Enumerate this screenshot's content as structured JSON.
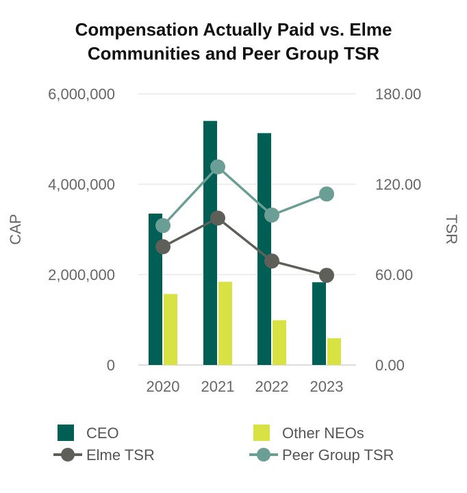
{
  "chart_data": {
    "type": "bar",
    "title_lines": [
      "Compensation Actually Paid vs. Elme",
      "Communities and Peer Group TSR"
    ],
    "categories": [
      "2020",
      "2021",
      "2022",
      "2023"
    ],
    "ylabel_left": "CAP",
    "ylabel_right": "TSR",
    "ylim_left": [
      0,
      6000000
    ],
    "ylim_right": [
      0,
      180
    ],
    "yticks_left": [
      {
        "value": 0,
        "label": "0"
      },
      {
        "value": 2000000,
        "label": "2,000,000"
      },
      {
        "value": 4000000,
        "label": "4,000,000"
      },
      {
        "value": 6000000,
        "label": "6,000,000"
      }
    ],
    "yticks_right": [
      {
        "value": 0,
        "label": "0.00"
      },
      {
        "value": 60,
        "label": "60.00"
      },
      {
        "value": 120,
        "label": "120.00"
      },
      {
        "value": 180,
        "label": "180.00"
      }
    ],
    "bar_series": [
      {
        "name": "CEO",
        "color": "#005f55",
        "values": [
          3350000,
          5400000,
          5130000,
          1830000
        ]
      },
      {
        "name": "Other NEOs",
        "color": "#d9e243",
        "values": [
          1570000,
          1840000,
          990000,
          590000
        ]
      }
    ],
    "line_series": [
      {
        "name": "Elme TSR",
        "color": "#5f5f5a",
        "values": [
          78.5,
          97.5,
          69.0,
          59.5
        ]
      },
      {
        "name": "Peer Group TSR",
        "color": "#6b9e95",
        "values": [
          92.5,
          131.5,
          99.5,
          113.5
        ]
      }
    ],
    "grid": true,
    "legend_position": "bottom"
  }
}
